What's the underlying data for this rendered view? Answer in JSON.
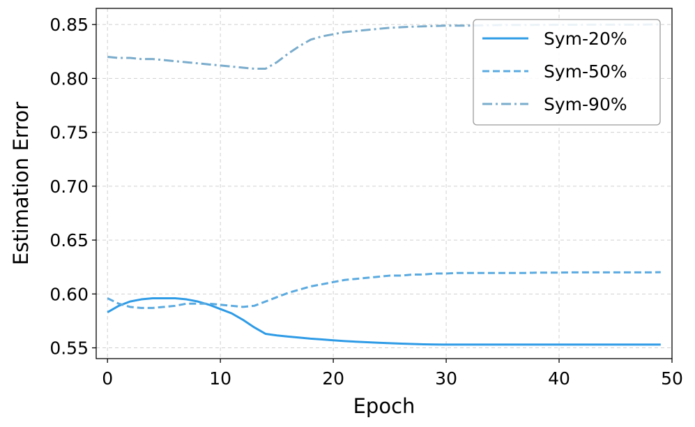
{
  "chart_data": {
    "type": "line",
    "title": "",
    "xlabel": "Epoch",
    "ylabel": "Estimation Error",
    "xlim": [
      -1,
      50
    ],
    "ylim": [
      0.54,
      0.865
    ],
    "xticks": [
      0,
      10,
      20,
      30,
      40,
      50
    ],
    "yticks": [
      0.55,
      0.6,
      0.65,
      0.7,
      0.75,
      0.8,
      0.85
    ],
    "ytick_labels": [
      "0.55",
      "0.60",
      "0.65",
      "0.70",
      "0.75",
      "0.80",
      "0.85"
    ],
    "grid": true,
    "legend_position": "top-right",
    "x": [
      0,
      1,
      2,
      3,
      4,
      5,
      6,
      7,
      8,
      9,
      10,
      11,
      12,
      13,
      14,
      15,
      16,
      17,
      18,
      19,
      20,
      21,
      22,
      23,
      24,
      25,
      26,
      27,
      28,
      29,
      30,
      31,
      32,
      33,
      34,
      35,
      36,
      37,
      38,
      39,
      40,
      41,
      42,
      43,
      44,
      45,
      46,
      47,
      48,
      49
    ],
    "series": [
      {
        "name": "Sym-20%",
        "color": "#2e9be6",
        "style": "solid",
        "values": [
          0.583,
          0.589,
          0.593,
          0.595,
          0.596,
          0.596,
          0.596,
          0.595,
          0.593,
          0.59,
          0.586,
          0.582,
          0.576,
          0.569,
          0.563,
          0.5615,
          0.5605,
          0.5595,
          0.5585,
          0.5578,
          0.557,
          0.5563,
          0.5557,
          0.5552,
          0.5547,
          0.5543,
          0.5539,
          0.5536,
          0.5533,
          0.5531,
          0.553,
          0.553,
          0.553,
          0.553,
          0.553,
          0.553,
          0.553,
          0.553,
          0.553,
          0.553,
          0.553,
          0.553,
          0.553,
          0.553,
          0.553,
          0.553,
          0.553,
          0.553,
          0.553,
          0.553
        ]
      },
      {
        "name": "Sym-50%",
        "color": "#5aaae0",
        "style": "dashed",
        "values": [
          0.596,
          0.591,
          0.588,
          0.587,
          0.587,
          0.588,
          0.589,
          0.591,
          0.591,
          0.591,
          0.59,
          0.589,
          0.588,
          0.589,
          0.593,
          0.597,
          0.601,
          0.604,
          0.607,
          0.609,
          0.611,
          0.613,
          0.614,
          0.615,
          0.616,
          0.617,
          0.617,
          0.618,
          0.618,
          0.619,
          0.619,
          0.6195,
          0.6195,
          0.6195,
          0.6195,
          0.6195,
          0.6195,
          0.6195,
          0.6198,
          0.6198,
          0.6198,
          0.62,
          0.62,
          0.62,
          0.62,
          0.62,
          0.62,
          0.62,
          0.62,
          0.6202
        ]
      },
      {
        "name": "Sym-90%",
        "color": "#7aaccc",
        "style": "dashdot",
        "values": [
          0.82,
          0.819,
          0.819,
          0.818,
          0.818,
          0.817,
          0.816,
          0.815,
          0.814,
          0.813,
          0.812,
          0.811,
          0.81,
          0.809,
          0.809,
          0.815,
          0.823,
          0.83,
          0.836,
          0.839,
          0.841,
          0.843,
          0.844,
          0.845,
          0.846,
          0.847,
          0.8475,
          0.848,
          0.8483,
          0.8486,
          0.849,
          0.849,
          0.849,
          0.8492,
          0.8494,
          0.8496,
          0.8496,
          0.8496,
          0.8497,
          0.8497,
          0.8498,
          0.8498,
          0.8498,
          0.8499,
          0.8499,
          0.8499,
          0.8499,
          0.8499,
          0.85,
          0.85
        ]
      }
    ]
  }
}
